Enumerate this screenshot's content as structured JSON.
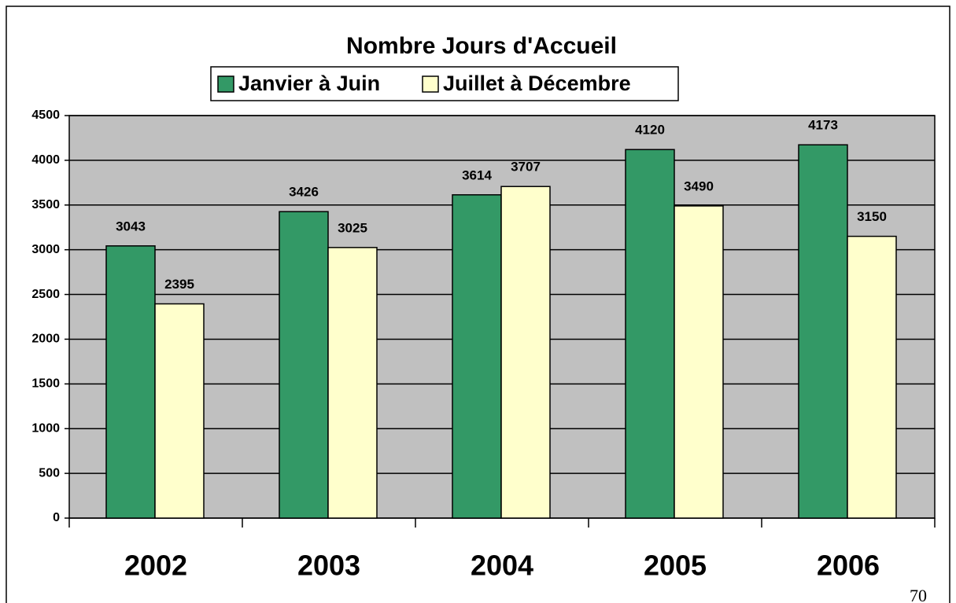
{
  "chart_data": {
    "type": "bar",
    "title": "Nombre Jours d'Accueil",
    "categories": [
      "2002",
      "2003",
      "2004",
      "2005",
      "2006"
    ],
    "series": [
      {
        "name": "Janvier à Juin",
        "color": "#339966",
        "values": [
          3043,
          3426,
          3614,
          4120,
          4173
        ]
      },
      {
        "name": "Juillet à Décembre",
        "color": "#ffffcc",
        "values": [
          2395,
          3025,
          3707,
          3490,
          3150
        ]
      }
    ],
    "ylim": [
      0,
      4500
    ],
    "yticks": [
      0,
      500,
      1000,
      1500,
      2000,
      2500,
      3000,
      3500,
      4000,
      4500
    ],
    "grid": true,
    "legend": "top",
    "plot_background": "#c0c0c0"
  },
  "page_number": "70"
}
